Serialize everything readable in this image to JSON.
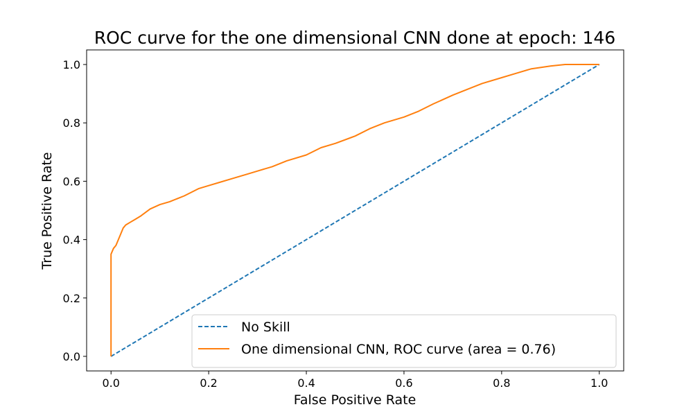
{
  "chart_data": {
    "type": "line",
    "title": "ROC curve for the one dimensional CNN done at epoch: 146",
    "xlabel": "False Positive Rate",
    "ylabel": "True Positive Rate",
    "xlim": [
      -0.05,
      1.05
    ],
    "ylim": [
      -0.05,
      1.05
    ],
    "xticks": [
      0.0,
      0.2,
      0.4,
      0.6,
      0.8,
      1.0
    ],
    "xtick_labels": [
      "0.0",
      "0.2",
      "0.4",
      "0.6",
      "0.8",
      "1.0"
    ],
    "yticks": [
      0.0,
      0.2,
      0.4,
      0.6,
      0.8,
      1.0
    ],
    "ytick_labels": [
      "0.0",
      "0.2",
      "0.4",
      "0.6",
      "0.8",
      "1.0"
    ],
    "grid": false,
    "legend_position": "lower-right",
    "series": [
      {
        "name": "No Skill",
        "color": "#1f77b4",
        "style": "dashed",
        "x": [
          0.0,
          1.0
        ],
        "y": [
          0.0,
          1.0
        ]
      },
      {
        "name": "One dimensional CNN, ROC curve (area = 0.76)",
        "color": "#ff7f0e",
        "style": "solid",
        "x": [
          0.0,
          0.0,
          0.0,
          0.005,
          0.01,
          0.015,
          0.02,
          0.025,
          0.03,
          0.04,
          0.05,
          0.06,
          0.08,
          0.1,
          0.12,
          0.15,
          0.18,
          0.2,
          0.22,
          0.25,
          0.28,
          0.3,
          0.33,
          0.36,
          0.4,
          0.43,
          0.46,
          0.5,
          0.53,
          0.56,
          0.6,
          0.63,
          0.66,
          0.7,
          0.73,
          0.76,
          0.8,
          0.83,
          0.86,
          0.9,
          0.93,
          0.96,
          1.0
        ],
        "y": [
          0.0,
          0.33,
          0.35,
          0.37,
          0.38,
          0.4,
          0.42,
          0.44,
          0.45,
          0.46,
          0.47,
          0.48,
          0.505,
          0.52,
          0.53,
          0.55,
          0.575,
          0.585,
          0.595,
          0.61,
          0.625,
          0.635,
          0.65,
          0.67,
          0.69,
          0.715,
          0.73,
          0.755,
          0.78,
          0.8,
          0.82,
          0.84,
          0.865,
          0.895,
          0.915,
          0.935,
          0.955,
          0.97,
          0.985,
          0.995,
          1.0,
          1.0,
          1.0
        ]
      }
    ]
  }
}
